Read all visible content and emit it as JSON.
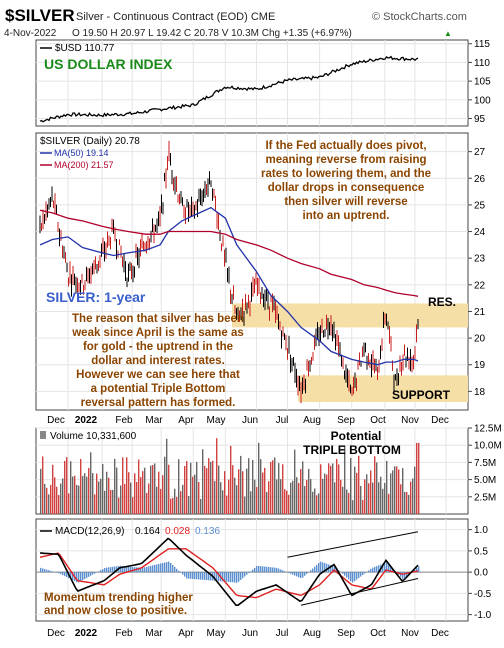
{
  "header": {
    "symbol": "$SILVER",
    "description": "Silver - Continuous Contract (EOD) CME",
    "source": "© StockCharts.com",
    "date": "4-Nov-2022",
    "ohlc": "O 19.50  H 20.97  L 19.42  C 20.78  V 10.3M  Chg +1.35 (+6.97%)",
    "chg_up_glyph": "▲"
  },
  "usd_panel": {
    "legend": "$USD 110.77",
    "title": "US DOLLAR INDEX",
    "y_ticks": [
      "115",
      "110",
      "105",
      "100",
      "95"
    ]
  },
  "price_panel": {
    "legend_main": "$SILVER (Daily) 20.78",
    "legend_ma50": "MA(50) 19.14",
    "legend_ma200": "MA(200) 21.57",
    "y_ticks": [
      "27",
      "26",
      "25",
      "24",
      "23",
      "22",
      "21",
      "20",
      "19",
      "18"
    ],
    "subtitle": "SILVER: 1-year",
    "fed_note": [
      "If the Fed actually does pivot,",
      "meaning reverse from raising",
      "rates to lowering them, and the",
      "dollar drops in consequence",
      "then silver will reverse",
      "into an uptrend."
    ],
    "left_note": [
      "The reason that silver has been",
      "weak since April is the same as",
      "for gold - the uptrend in the",
      "dollar and interest rates.",
      "However we can see here that",
      "a potential Triple Bottom",
      "reversal pattern has formed."
    ],
    "res_label": "RES.",
    "support_label": "SUPPORT"
  },
  "months": [
    "Dec",
    "2022",
    "Feb",
    "Mar",
    "Apr",
    "May",
    "Jun",
    "Jul",
    "Aug",
    "Sep",
    "Oct",
    "Nov",
    "Dec"
  ],
  "volume_panel": {
    "legend": "Volume 10,331,600",
    "title_1": "Potential",
    "title_2": "TRIPLE BOTTOM",
    "y_ticks": [
      "12.5M",
      "10.0M",
      "7.5M",
      "5.0M",
      "2.5M"
    ]
  },
  "macd_panel": {
    "legend_label": "MACD(12,26,9)",
    "macd_value": "0.164",
    "signal_value": "0.028",
    "hist_value": "0.136",
    "y_ticks": [
      "1.0",
      "0.5",
      "0.0",
      "-0.5",
      "-1.0"
    ],
    "note": [
      "Momentum trending higher",
      "and now close to positive."
    ]
  },
  "colors": {
    "note_text": "#8b4500",
    "title_green": "#1a8a1a",
    "subtitle_blue": "#3a5fcd",
    "ma50": "#2233aa",
    "ma200": "#b0002a",
    "zone_fill": "#f6dfa6",
    "volume_red": "#d24040",
    "volume_grey": "#666666",
    "macd_line": "#000000",
    "signal_line": "#e02020",
    "macd_hist": "#5b8fd0"
  },
  "chart_data": [
    {
      "type": "line",
      "name": "US Dollar Index",
      "x": [
        "2021-11-04",
        "2021-12-01",
        "2022-01-03",
        "2022-02-01",
        "2022-03-01",
        "2022-04-01",
        "2022-05-02",
        "2022-06-01",
        "2022-07-01",
        "2022-08-01",
        "2022-09-01",
        "2022-10-03",
        "2022-11-04"
      ],
      "values": [
        94.3,
        96.1,
        95.9,
        96.3,
        97.5,
        98.6,
        103.5,
        102.8,
        105.2,
        106.0,
        109.6,
        111.3,
        110.8
      ],
      "ylim": [
        93,
        116
      ]
    },
    {
      "type": "line",
      "name": "$SILVER (Daily)",
      "x": [
        "2021-11-04",
        "2021-11-16",
        "2021-12-01",
        "2021-12-15",
        "2022-01-03",
        "2022-01-14",
        "2022-01-28",
        "2022-02-14",
        "2022-02-28",
        "2022-03-08",
        "2022-03-21",
        "2022-04-01",
        "2022-04-18",
        "2022-05-02",
        "2022-05-13",
        "2022-06-01",
        "2022-06-15",
        "2022-07-01",
        "2022-07-14",
        "2022-08-01",
        "2022-08-12",
        "2022-09-01",
        "2022-09-13",
        "2022-09-26",
        "2022-10-04",
        "2022-10-13",
        "2022-10-21",
        "2022-10-31",
        "2022-11-04"
      ],
      "values": [
        24.1,
        25.3,
        22.4,
        22.0,
        23.1,
        24.0,
        22.3,
        23.6,
        24.4,
        26.9,
        24.9,
        24.7,
        26.0,
        22.8,
        20.7,
        21.9,
        21.3,
        19.7,
        18.1,
        20.2,
        20.7,
        17.8,
        19.7,
        18.6,
        21.1,
        18.3,
        19.4,
        19.2,
        20.78
      ],
      "ma50": [
        23.5,
        23.7,
        23.8,
        23.4,
        23.2,
        23.1,
        23.2,
        23.3,
        23.5,
        24.0,
        24.4,
        24.6,
        24.9,
        24.5,
        23.5,
        22.5,
        21.6,
        21.0,
        20.4,
        19.9,
        19.5,
        19.2,
        19.1,
        19.0,
        19.1,
        19.1,
        19.2,
        19.2,
        19.14
      ],
      "ma200": [
        24.8,
        24.7,
        24.5,
        24.4,
        24.2,
        24.1,
        24.0,
        23.9,
        23.9,
        24.0,
        24.0,
        24.0,
        24.0,
        23.9,
        23.7,
        23.5,
        23.3,
        23.0,
        22.8,
        22.6,
        22.4,
        22.2,
        22.0,
        21.9,
        21.8,
        21.7,
        21.65,
        21.6,
        21.57
      ],
      "ylim": [
        17.3,
        27.7
      ],
      "resistance_zone": [
        20.4,
        21.3
      ],
      "support_zone": [
        17.6,
        18.6
      ]
    },
    {
      "type": "bar",
      "name": "Volume",
      "ylim": [
        0,
        12500000
      ],
      "latest": 10331600
    },
    {
      "type": "line",
      "name": "MACD(12,26,9)",
      "x": [
        "2021-11-04",
        "2021-11-22",
        "2021-12-10",
        "2022-01-05",
        "2022-01-20",
        "2022-02-10",
        "2022-03-08",
        "2022-03-25",
        "2022-04-20",
        "2022-05-13",
        "2022-06-01",
        "2022-06-20",
        "2022-07-14",
        "2022-08-01",
        "2022-08-15",
        "2022-09-01",
        "2022-09-20",
        "2022-10-04",
        "2022-10-20",
        "2022-11-04"
      ],
      "macd": [
        0.45,
        0.42,
        -0.45,
        -0.2,
        0.1,
        0.2,
        0.8,
        0.4,
        -0.1,
        -0.8,
        -0.45,
        -0.3,
        -0.7,
        -0.05,
        0.18,
        -0.55,
        -0.3,
        0.28,
        -0.22,
        0.164
      ],
      "signal": [
        0.35,
        0.45,
        -0.2,
        -0.3,
        -0.05,
        0.1,
        0.55,
        0.55,
        0.1,
        -0.55,
        -0.6,
        -0.4,
        -0.55,
        -0.3,
        0.05,
        -0.3,
        -0.4,
        0.05,
        -0.05,
        0.028
      ],
      "histogram_latest": 0.136,
      "ylim": [
        -1.15,
        1.25
      ]
    }
  ]
}
